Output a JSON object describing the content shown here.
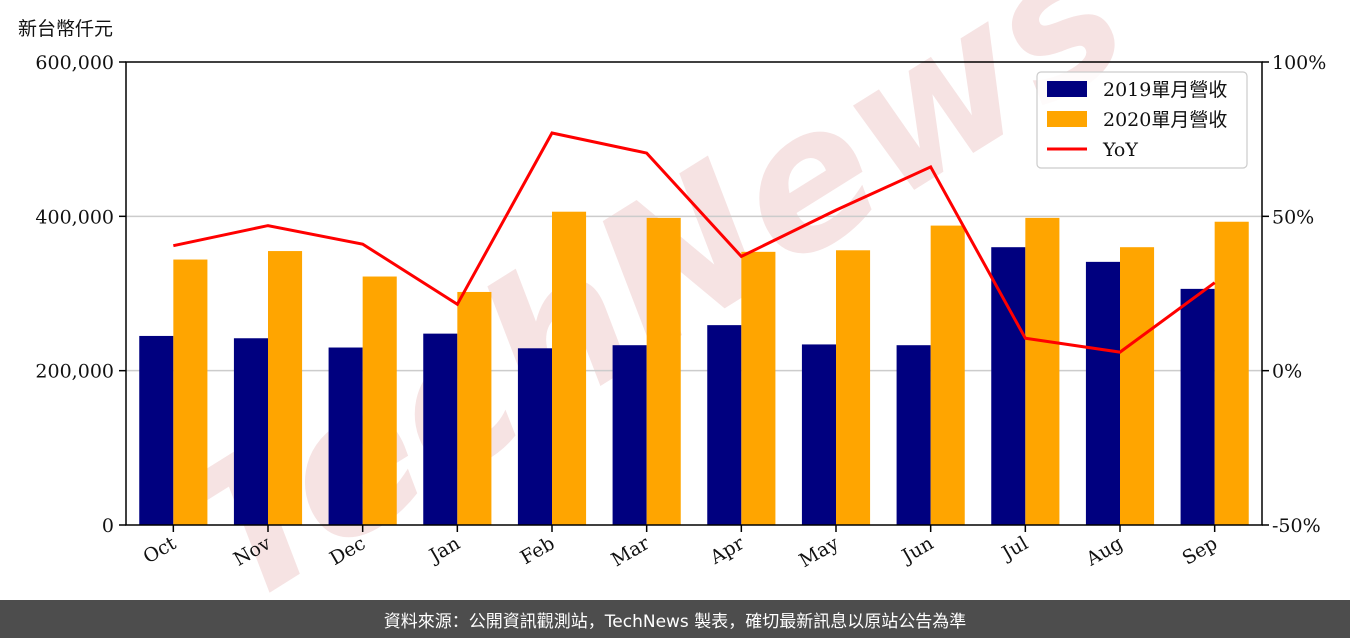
{
  "unit_label": "新台幣仟元",
  "footer_text": "資料來源：公開資訊觀測站，TechNews 製表，確切最新訊息以原站公告為準",
  "watermark_text": "TechNews",
  "colors": {
    "series_2019": "#00007f",
    "series_2020": "#ffa500",
    "yoy_line": "#ff0000",
    "grid": "#cccccc",
    "watermark": "#f3dada",
    "footer_bg": "#4d4d4d"
  },
  "chart_data": {
    "type": "bar",
    "categories": [
      "Oct",
      "Nov",
      "Dec",
      "Jan",
      "Feb",
      "Mar",
      "Apr",
      "May",
      "Jun",
      "Jul",
      "Aug",
      "Sep"
    ],
    "series": [
      {
        "name": "2019單月營收",
        "type": "bar",
        "axis": "left",
        "values": [
          245000,
          242000,
          230000,
          248000,
          229000,
          233000,
          259000,
          234000,
          233000,
          360000,
          341000,
          306000
        ]
      },
      {
        "name": "2020單月營收",
        "type": "bar",
        "axis": "left",
        "values": [
          344000,
          355000,
          322000,
          302000,
          406000,
          398000,
          354000,
          356000,
          388000,
          398000,
          360000,
          393000
        ]
      },
      {
        "name": "YoY",
        "type": "line",
        "axis": "right",
        "values": [
          40.5,
          47,
          41,
          21.5,
          77,
          70.5,
          37,
          52,
          66,
          10.5,
          6,
          28.5
        ]
      }
    ],
    "y_left": {
      "min": 0,
      "max": 600000,
      "ticks": [
        0,
        200000,
        400000,
        600000
      ],
      "tick_labels": [
        "0",
        "200,000",
        "400,000",
        "600,000"
      ]
    },
    "y_right": {
      "min": -50,
      "max": 100,
      "ticks": [
        -50,
        0,
        50,
        100
      ],
      "tick_labels": [
        "-50%",
        "0%",
        "50%",
        "100%"
      ]
    },
    "grid": true,
    "legend": "top-right"
  }
}
